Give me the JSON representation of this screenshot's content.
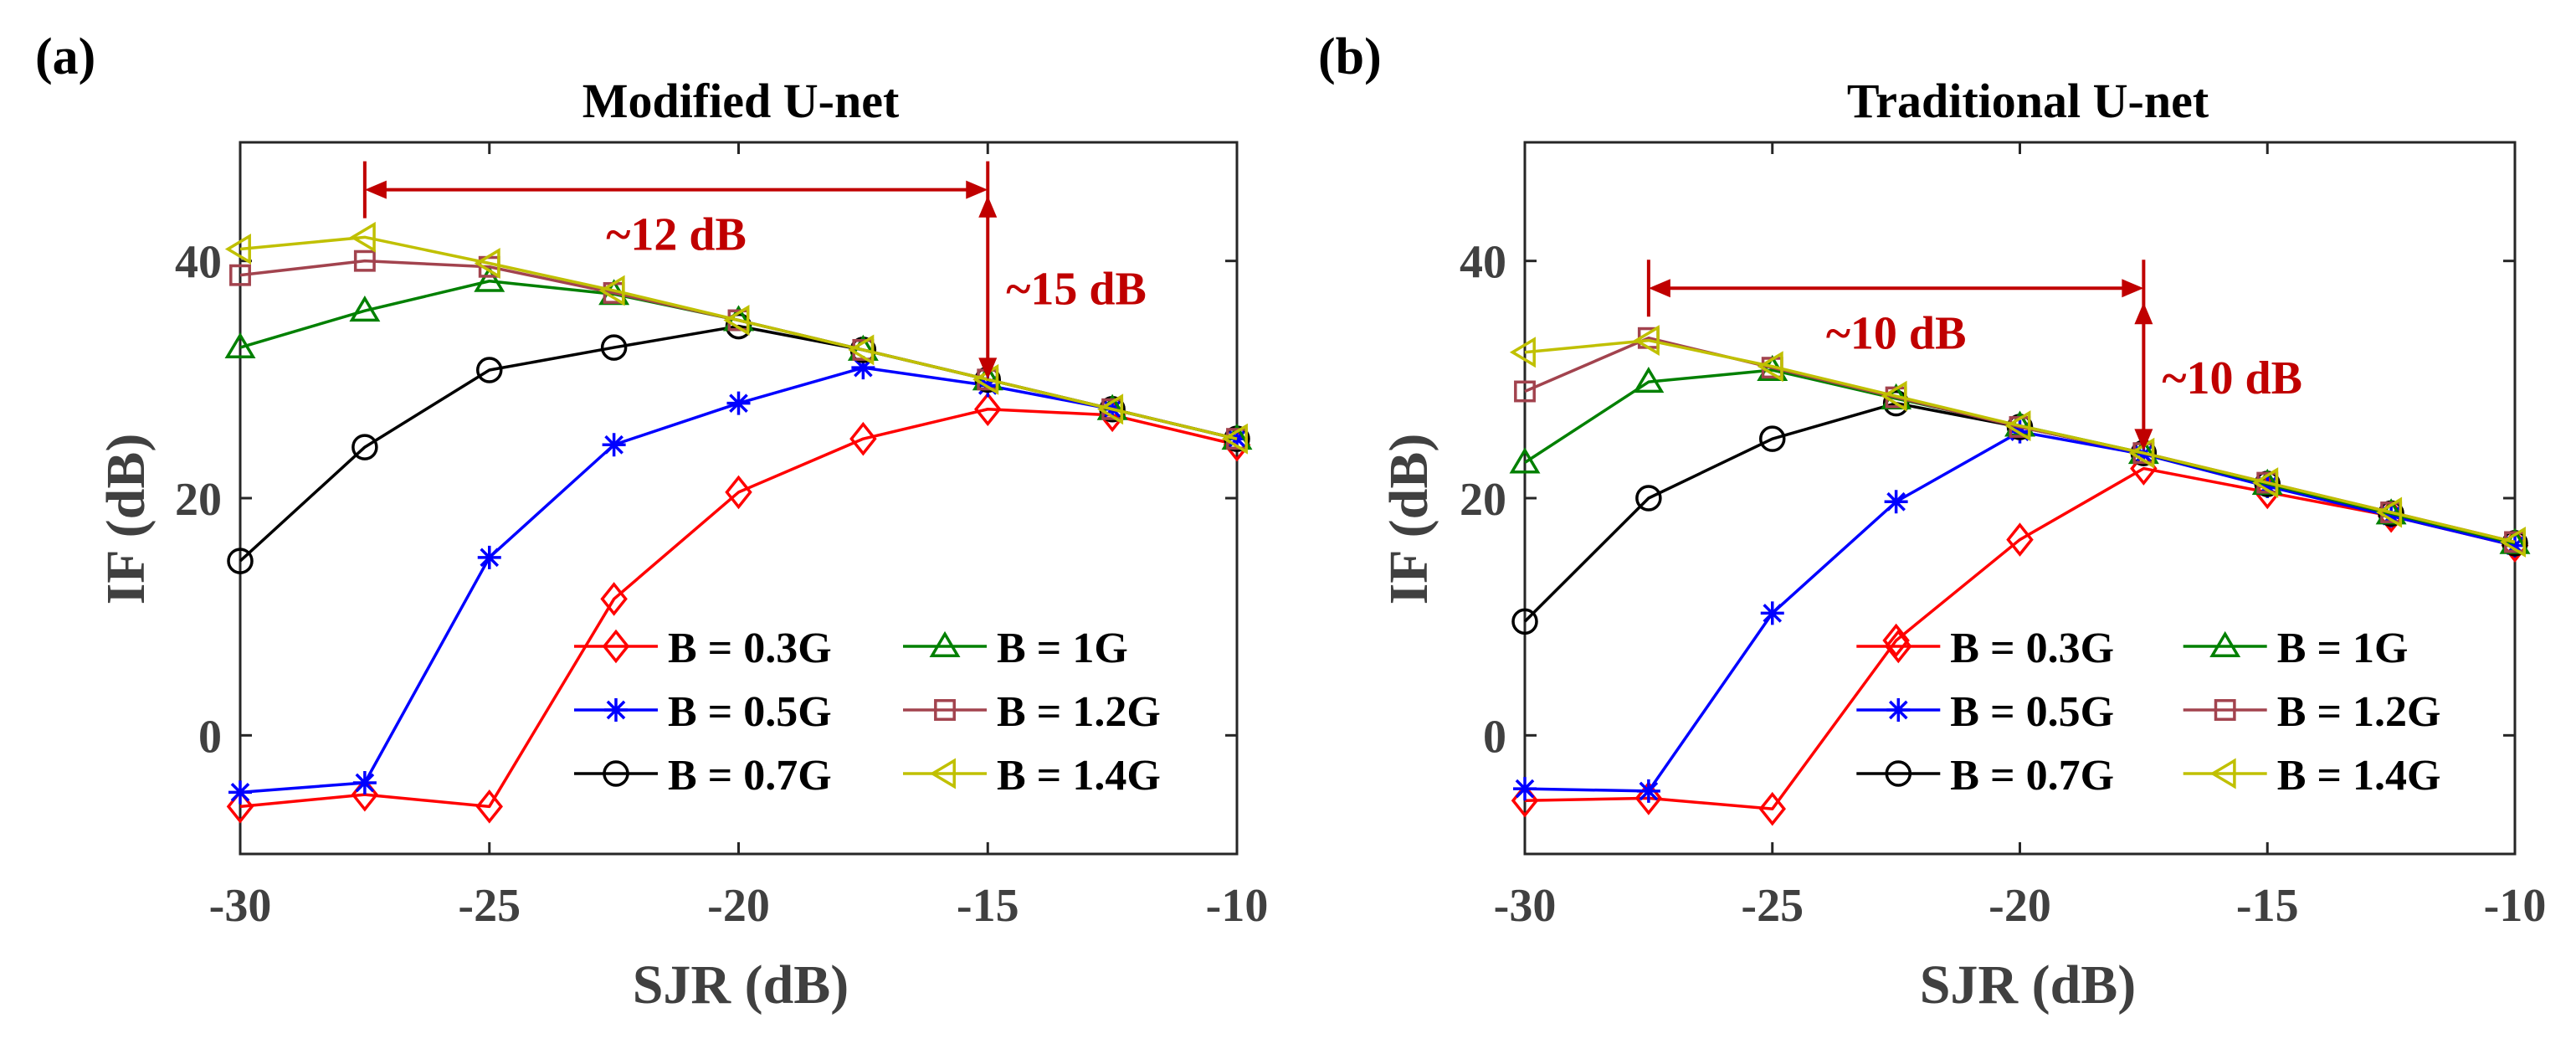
{
  "colors": {
    "B = 0.3G": "#ff0000",
    "B = 0.5G": "#0000ff",
    "B = 0.7G": "#000000",
    "B = 1G": "#008000",
    "B = 1.2G": "#a2434e",
    "B = 1.4G": "#c0c000",
    "annotation": "#c00000",
    "axis": "#262626",
    "text": "#404040"
  },
  "markers": {
    "B = 0.3G": "diamond",
    "B = 0.5G": "asterisk",
    "B = 0.7G": "circle",
    "B = 1G": "triangle-up",
    "B = 1.2G": "square",
    "B = 1.4G": "triangle-left"
  },
  "chart_data": [
    {
      "panel_label": "(a)",
      "type": "line",
      "title": "Modified U-net",
      "xlabel": "SJR (dB)",
      "ylabel": "IF (dB)",
      "xlim": [
        -30,
        -10
      ],
      "ylim": [
        -10,
        50
      ],
      "xticks": [
        -30,
        -25,
        -20,
        -15,
        -10
      ],
      "yticks": [
        0,
        20,
        40
      ],
      "grid": false,
      "legend_position": "bottom-right",
      "x": [
        -30,
        -27.5,
        -25,
        -22.5,
        -20,
        -17.5,
        -15,
        -12.5,
        -10
      ],
      "series": [
        {
          "name": "B = 0.3G",
          "values": [
            -6,
            -5,
            -6,
            11.5,
            20.5,
            25,
            27.5,
            27,
            24.5
          ]
        },
        {
          "name": "B = 0.5G",
          "values": [
            -4.8,
            -4,
            15,
            24.5,
            28,
            31,
            29.5,
            27.5,
            25
          ]
        },
        {
          "name": "B = 0.7G",
          "values": [
            14.7,
            24.3,
            30.8,
            32.7,
            34.5,
            32.5,
            30,
            27.5,
            25
          ]
        },
        {
          "name": "B = 1G",
          "values": [
            32.7,
            35.8,
            38.3,
            37.2,
            35,
            32.5,
            30,
            27.5,
            25
          ]
        },
        {
          "name": "B = 1.2G",
          "values": [
            38.8,
            40,
            39.5,
            37.3,
            35,
            32.5,
            30,
            27.5,
            25
          ]
        },
        {
          "name": "B = 1.4G",
          "values": [
            41,
            42,
            39.8,
            37.5,
            35,
            32.5,
            30,
            27.5,
            25
          ]
        }
      ],
      "annotations": [
        {
          "type": "h-arrow",
          "x0": -27.5,
          "x1": -15,
          "y": 46,
          "label": "~12 dB"
        },
        {
          "type": "v-arrow",
          "x": -15,
          "y0": 30,
          "y1": 45.5,
          "label": "~15 dB"
        }
      ]
    },
    {
      "panel_label": "(b)",
      "type": "line",
      "title": "Traditional U-net",
      "xlabel": "SJR (dB)",
      "ylabel": "IF (dB)",
      "xlim": [
        -30,
        -10
      ],
      "ylim": [
        -10,
        50
      ],
      "xticks": [
        -30,
        -25,
        -20,
        -15,
        -10
      ],
      "yticks": [
        0,
        20,
        40
      ],
      "grid": false,
      "legend_position": "bottom-right",
      "x": [
        -30,
        -27.5,
        -25,
        -22.5,
        -20,
        -17.5,
        -15,
        -12.5,
        -10
      ],
      "series": [
        {
          "name": "B = 0.3G",
          "values": [
            -5.5,
            -5.3,
            -6.2,
            8,
            16.5,
            22.5,
            20.5,
            18.5,
            16
          ]
        },
        {
          "name": "B = 0.5G",
          "values": [
            -4.5,
            -4.7,
            10.3,
            19.7,
            25.6,
            23.7,
            21,
            18.5,
            16
          ]
        },
        {
          "name": "B = 0.7G",
          "values": [
            9.6,
            20,
            25,
            28,
            26,
            23.8,
            21.2,
            18.7,
            16.2
          ]
        },
        {
          "name": "B = 1G",
          "values": [
            23,
            29.8,
            30.8,
            28.4,
            26.1,
            23.8,
            21.2,
            18.7,
            16.2
          ]
        },
        {
          "name": "B = 1.2G",
          "values": [
            29,
            33.5,
            31,
            28.5,
            26,
            23.8,
            21.3,
            18.8,
            16.3
          ]
        },
        {
          "name": "B = 1.4G",
          "values": [
            32.3,
            33.3,
            31.1,
            28.6,
            26.1,
            23.8,
            21.3,
            18.8,
            16.3
          ]
        }
      ],
      "annotations": [
        {
          "type": "h-arrow",
          "x0": -27.5,
          "x1": -17.5,
          "y": 37.7,
          "label": "~10 dB"
        },
        {
          "type": "v-arrow",
          "x": -17.5,
          "y0": 24,
          "y1": 36.5,
          "label": "~10 dB"
        }
      ]
    }
  ]
}
